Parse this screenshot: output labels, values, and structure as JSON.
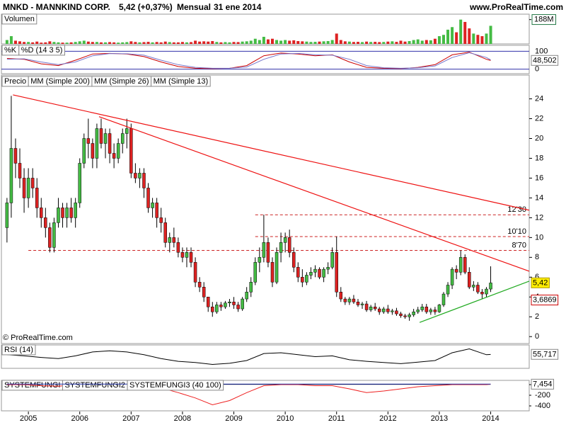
{
  "header": {
    "symbol": "MNKD - MANNKIND CORP.",
    "quote": "5,42 (+0,37%)",
    "period": "Mensual",
    "date": "31 ene 2014",
    "site": "www.ProRealTime.com"
  },
  "chart_data": [
    {
      "type": "candlestick",
      "legend": [
        {
          "name": "Precio",
          "color": "#000000"
        },
        {
          "name": "MM (Simple 200)",
          "color": "#000000"
        },
        {
          "name": "MM (Simple 26)",
          "color": "#aa2222"
        },
        {
          "name": "MM (Simple 13)",
          "color": "#227744"
        }
      ],
      "up_color": "#44bb44",
      "down_color": "#dd2222",
      "open": [
        11,
        13.5,
        19,
        17.5,
        16,
        14,
        16,
        15,
        13,
        12,
        11,
        9,
        11.5,
        13,
        12,
        13,
        12,
        13.5,
        17.5,
        20,
        19.5,
        18,
        21,
        19.5,
        20.5,
        18.5,
        18,
        19.5,
        20.5,
        21,
        16.5,
        16,
        16.5,
        15,
        13,
        13.5,
        12,
        11.5,
        9.5,
        10,
        9.5,
        8.5,
        8,
        8.5,
        7.5,
        5.5,
        5,
        4,
        3,
        2.5,
        3.2,
        3,
        3.4,
        3.5,
        3.2,
        2.8,
        3.8,
        4.5,
        5.5,
        7.5,
        8,
        9.5,
        7.5,
        5.5,
        8.5,
        9.5,
        10,
        8.5,
        7,
        6,
        5.5,
        6.2,
        6.5,
        6.8,
        6,
        6.8,
        7,
        8.5,
        4.5,
        3.8,
        3.5,
        3.8,
        3.5,
        3.2,
        3.3,
        2.7,
        3,
        2.8,
        2.5,
        2.8,
        2.5,
        2.6,
        2.3,
        2.1,
        2,
        2.2,
        2.5,
        2.7,
        3,
        2.5,
        2.7,
        2.5,
        3.2,
        4.3,
        5.2,
        6.8,
        6.5,
        8,
        6.5,
        5,
        5.2,
        4.5,
        4.3,
        4.8
      ],
      "high": [
        14,
        24.3,
        20,
        19,
        17,
        17,
        17,
        16,
        14,
        13,
        11.5,
        12,
        14,
        13.5,
        13.5,
        14,
        14,
        18,
        20.5,
        22,
        20,
        21.5,
        22,
        21,
        21,
        19.5,
        20,
        21,
        22,
        21.5,
        17.5,
        17,
        17,
        15.5,
        14,
        14,
        13,
        12,
        10.5,
        11,
        10,
        9,
        9,
        9,
        8,
        6,
        5.5,
        4,
        3.5,
        3.5,
        3.5,
        3.6,
        3.8,
        4,
        3.5,
        4,
        5,
        6,
        8,
        9,
        12.3,
        10,
        8,
        9,
        10.5,
        10.5,
        10.8,
        9,
        7.5,
        6.8,
        6.5,
        7,
        7.2,
        7,
        7,
        7.5,
        9,
        10.1,
        5,
        4,
        4,
        4.2,
        3.8,
        3.5,
        3.6,
        3.2,
        3.4,
        3,
        3,
        3.2,
        2.8,
        2.9,
        2.5,
        2.3,
        2.4,
        2.8,
        3,
        3.3,
        3.3,
        2.9,
        3,
        3.3,
        4.5,
        5.5,
        7,
        7.2,
        8.7,
        8.3,
        7,
        5.6,
        5.5,
        4.8,
        5,
        7.1
      ],
      "low": [
        9.5,
        12,
        16,
        15,
        12.5,
        13,
        14,
        12,
        11,
        10,
        8.5,
        8.5,
        11,
        11,
        11,
        11.5,
        11,
        13,
        17,
        18,
        17,
        17,
        19,
        18,
        17.5,
        17,
        17.5,
        18.5,
        19,
        16,
        15.5,
        15,
        14,
        12.5,
        12,
        11,
        10.5,
        9,
        8.5,
        9,
        8,
        7.5,
        7,
        7,
        5,
        4.5,
        3.5,
        2.5,
        2,
        2.3,
        2.6,
        2.8,
        3,
        2.8,
        2.5,
        2.6,
        3.5,
        4,
        5.2,
        6.5,
        7.5,
        7,
        5,
        5.3,
        7.5,
        8.5,
        8,
        6.5,
        5.5,
        5,
        5.2,
        5.8,
        6,
        5.8,
        5.5,
        6.3,
        6.8,
        4,
        3.5,
        3.2,
        3.2,
        3.3,
        3,
        2.8,
        2.5,
        2.5,
        2.6,
        2.2,
        2.3,
        2.3,
        2.2,
        2.1,
        1.9,
        1.8,
        1.6,
        2,
        2.3,
        2.5,
        2.3,
        2.2,
        2.2,
        2.4,
        3,
        4,
        4.8,
        5.8,
        6.2,
        6.3,
        4.8,
        4.6,
        4.3,
        3.8,
        4,
        4.5
      ],
      "close": [
        13.5,
        19,
        17.5,
        16,
        14,
        16,
        15,
        13,
        12,
        11,
        9,
        11.5,
        13,
        12,
        13,
        12,
        13.5,
        17.5,
        20,
        19.5,
        18,
        21,
        19.5,
        20.5,
        18.5,
        18,
        19.5,
        20.5,
        21,
        16.5,
        16,
        16.5,
        15,
        13,
        13.5,
        12,
        11.5,
        9.5,
        10,
        9.5,
        8.5,
        8,
        8.5,
        7.5,
        5.5,
        5,
        4,
        3,
        2.5,
        3.2,
        3,
        3.4,
        3.5,
        3.2,
        2.8,
        3.8,
        4.5,
        5.5,
        7.5,
        8,
        9.5,
        7.5,
        5.5,
        8.5,
        9.5,
        10,
        8.5,
        7,
        6,
        5.5,
        6.2,
        6.5,
        6.8,
        6,
        6.8,
        7,
        8.5,
        4.5,
        3.8,
        3.5,
        3.8,
        3.5,
        3.2,
        3.3,
        2.7,
        3,
        2.8,
        2.5,
        2.8,
        2.5,
        2.6,
        2.3,
        2.1,
        2,
        2.2,
        2.5,
        2.7,
        3,
        2.5,
        2.7,
        2.5,
        3.2,
        4.3,
        5.2,
        6.8,
        6.5,
        8,
        6.5,
        5,
        5.2,
        4.5,
        4.3,
        4.8,
        5.42
      ],
      "xlim": [
        -1.3,
        122
      ],
      "xticks": [
        {
          "value": 5,
          "label": "2005"
        },
        {
          "value": 17,
          "label": "2006"
        },
        {
          "value": 29,
          "label": "2007"
        },
        {
          "value": 41,
          "label": "2008"
        },
        {
          "value": 53,
          "label": "2009"
        },
        {
          "value": 65,
          "label": "2010"
        },
        {
          "value": 77,
          "label": "2011"
        },
        {
          "value": 89,
          "label": "2012"
        },
        {
          "value": 101,
          "label": "2013"
        },
        {
          "value": 113,
          "label": "2014"
        }
      ],
      "ylim": [
        -0.7,
        26.4
      ],
      "yticks": [
        0,
        2,
        4,
        6,
        8,
        10,
        12,
        14,
        16,
        18,
        20,
        22,
        24
      ],
      "levels": [
        {
          "value": 8.7,
          "label": "8'70",
          "start": 5
        },
        {
          "value": 10.1,
          "label": "10'10",
          "start": 58
        },
        {
          "value": 12.3,
          "label": "12'30",
          "start": 58
        }
      ],
      "level_color": "#cc2222",
      "trendlines": [
        {
          "points": [
            [
              1.4,
              24.4
            ],
            [
              122,
              12.76
            ]
          ],
          "color": "#ee1111"
        },
        {
          "points": [
            [
              21.5,
              22.2
            ],
            [
              122,
              6.6
            ]
          ],
          "color": "#ee1111"
        },
        {
          "points": [
            [
              96.4,
              1.43
            ],
            [
              122,
              5.6
            ]
          ],
          "color": "#22aa22"
        }
      ],
      "last_value": {
        "value": 5.42,
        "label": "5,42"
      },
      "ma_value": {
        "value": 3.6869,
        "label": "3,6869"
      },
      "credit": "© ProRealTime.com"
    },
    {
      "type": "bar",
      "title": "Volumen",
      "values": [
        30,
        60,
        25,
        20,
        15,
        15,
        12,
        18,
        10,
        12,
        20,
        15,
        12,
        10,
        10,
        12,
        15,
        20,
        25,
        18,
        15,
        15,
        12,
        12,
        14,
        12,
        10,
        12,
        14,
        20,
        15,
        12,
        14,
        16,
        12,
        15,
        12,
        18,
        14,
        12,
        12,
        15,
        12,
        14,
        25,
        18,
        20,
        18,
        22,
        15,
        12,
        14,
        12,
        15,
        14,
        18,
        20,
        25,
        40,
        30,
        55,
        35,
        40,
        30,
        25,
        30,
        25,
        28,
        22,
        20,
        18,
        15,
        16,
        18,
        20,
        22,
        30,
        80,
        30,
        20,
        18,
        15,
        16,
        14,
        18,
        15,
        16,
        14,
        15,
        18,
        20,
        16,
        25,
        18,
        22,
        30,
        35,
        25,
        30,
        28,
        40,
        60,
        70,
        110,
        130,
        90,
        188,
        170,
        120,
        80,
        70,
        60,
        80,
        140
      ],
      "ylim": [
        0,
        230
      ],
      "yticks": [
        {
          "value": 188,
          "label": "188M"
        }
      ]
    },
    {
      "type": "line",
      "x": [
        0,
        4,
        8,
        12,
        16,
        20,
        24,
        28,
        32,
        36,
        40,
        44,
        48,
        52,
        56,
        60,
        64,
        68,
        72,
        76,
        80,
        84,
        88,
        92,
        96,
        100,
        104,
        108,
        112,
        113
      ],
      "series": [
        {
          "name": "%K",
          "color": "#cc0000",
          "values": [
            60,
            55,
            30,
            20,
            50,
            85,
            88,
            85,
            70,
            40,
            15,
            5,
            3,
            5,
            20,
            75,
            90,
            85,
            75,
            80,
            40,
            10,
            5,
            3,
            10,
            25,
            80,
            95,
            55,
            48.502
          ]
        },
        {
          "name": "%D (14 3 5)",
          "color": "#7777cc",
          "values": [
            55,
            58,
            40,
            25,
            40,
            75,
            87,
            86,
            78,
            50,
            25,
            10,
            5,
            5,
            12,
            55,
            85,
            88,
            80,
            78,
            55,
            20,
            8,
            5,
            8,
            18,
            65,
            92,
            65,
            52
          ]
        }
      ],
      "ylim": [
        -25,
        133
      ],
      "yticks": [
        0,
        100
      ],
      "grid_color": "#3333aa",
      "last_value": {
        "value": 48.502,
        "label": "48,502"
      }
    },
    {
      "type": "line",
      "x": [
        0,
        4,
        8,
        12,
        16,
        20,
        24,
        28,
        32,
        36,
        40,
        44,
        48,
        52,
        56,
        60,
        64,
        68,
        72,
        76,
        80,
        84,
        88,
        92,
        96,
        100,
        104,
        108,
        112,
        113
      ],
      "series": [
        {
          "name": "RSI (14)",
          "color": "#000000",
          "values": [
            55,
            52,
            48,
            45,
            52,
            62,
            65,
            62,
            55,
            45,
            38,
            35,
            30,
            33,
            40,
            58,
            60,
            55,
            50,
            52,
            42,
            38,
            35,
            32,
            36,
            40,
            60,
            70,
            55,
            55.717
          ]
        }
      ],
      "ylim": [
        20,
        80
      ],
      "yticks": [],
      "last_value": {
        "value": 55.717,
        "label": "55,717"
      }
    },
    {
      "type": "line",
      "x": [
        0,
        4,
        8,
        12,
        16,
        20,
        24,
        28,
        32,
        36,
        40,
        44,
        48,
        52,
        56,
        60,
        64,
        68,
        72,
        76,
        80,
        84,
        88,
        92,
        96,
        100,
        104,
        108,
        112,
        113
      ],
      "series": [
        {
          "name": "SYSTEMFUNGI",
          "color": "#000000",
          "values": [
            5,
            5,
            5,
            5,
            5,
            5,
            5,
            5,
            5,
            5,
            5,
            5,
            5,
            5,
            5,
            5,
            5,
            5,
            5,
            5,
            5,
            5,
            5,
            5,
            5,
            5,
            5,
            5,
            5,
            5
          ]
        },
        {
          "name": "SYSTEMFUNGI2",
          "color": "#ee2222",
          "values": [
            0,
            0,
            -20,
            -30,
            0,
            0,
            0,
            0,
            -30,
            -60,
            -150,
            -250,
            -380,
            -300,
            -150,
            -20,
            0,
            0,
            -20,
            -20,
            -80,
            -150,
            -120,
            -80,
            -40,
            -20,
            0,
            0,
            0,
            7.454
          ]
        },
        {
          "name": "SYSTEMFUNGI3 (40 100)",
          "color": "#2233aa",
          "values": [
            10,
            10,
            10,
            10,
            10,
            10,
            10,
            10,
            10,
            10,
            10,
            10,
            10,
            10,
            10,
            10,
            10,
            10,
            10,
            10,
            10,
            10,
            10,
            10,
            10,
            10,
            10,
            10,
            10,
            10
          ]
        }
      ],
      "ylim": [
        -493,
        80
      ],
      "yticks": [
        0,
        -200,
        -400
      ],
      "last_value": {
        "value": 7.454,
        "label": "7,454"
      }
    }
  ]
}
